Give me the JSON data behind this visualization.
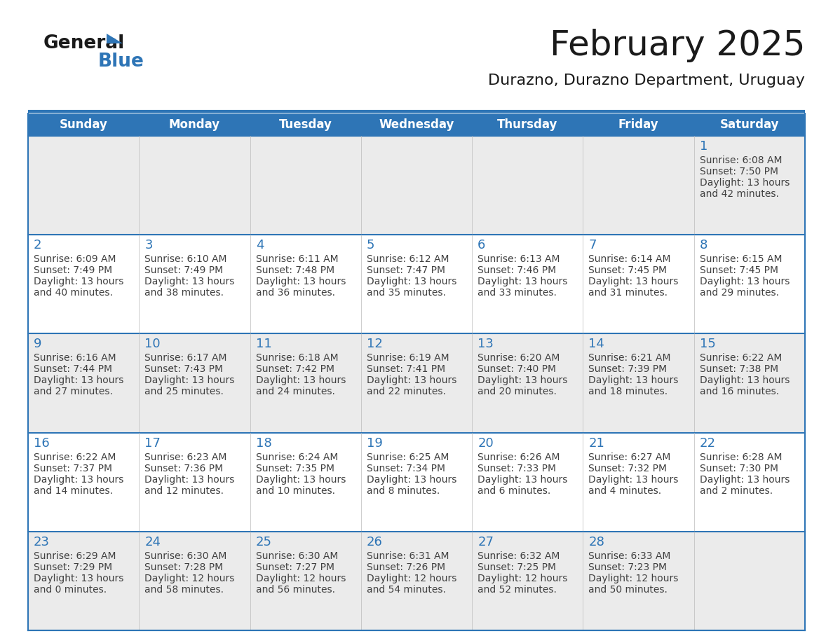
{
  "title": "February 2025",
  "subtitle": "Durazno, Durazno Department, Uruguay",
  "days_of_week": [
    "Sunday",
    "Monday",
    "Tuesday",
    "Wednesday",
    "Thursday",
    "Friday",
    "Saturday"
  ],
  "header_bg": "#2E75B6",
  "header_text": "#FFFFFF",
  "cell_bg_white": "#FFFFFF",
  "cell_bg_gray": "#EBEBEB",
  "border_color": "#2E75B6",
  "text_color": "#404040",
  "day_num_color": "#2E75B6",
  "title_color": "#1a1a1a",
  "logo_general_color": "#1a1a1a",
  "logo_blue_color": "#2E75B6",
  "calendar_data": [
    [
      null,
      null,
      null,
      null,
      null,
      null,
      {
        "day": 1,
        "sunrise": "6:08 AM",
        "sunset": "7:50 PM",
        "daylight_h": "13 hours",
        "daylight_m": "42 minutes"
      }
    ],
    [
      {
        "day": 2,
        "sunrise": "6:09 AM",
        "sunset": "7:49 PM",
        "daylight_h": "13 hours",
        "daylight_m": "40 minutes"
      },
      {
        "day": 3,
        "sunrise": "6:10 AM",
        "sunset": "7:49 PM",
        "daylight_h": "13 hours",
        "daylight_m": "38 minutes"
      },
      {
        "day": 4,
        "sunrise": "6:11 AM",
        "sunset": "7:48 PM",
        "daylight_h": "13 hours",
        "daylight_m": "36 minutes"
      },
      {
        "day": 5,
        "sunrise": "6:12 AM",
        "sunset": "7:47 PM",
        "daylight_h": "13 hours",
        "daylight_m": "35 minutes"
      },
      {
        "day": 6,
        "sunrise": "6:13 AM",
        "sunset": "7:46 PM",
        "daylight_h": "13 hours",
        "daylight_m": "33 minutes"
      },
      {
        "day": 7,
        "sunrise": "6:14 AM",
        "sunset": "7:45 PM",
        "daylight_h": "13 hours",
        "daylight_m": "31 minutes"
      },
      {
        "day": 8,
        "sunrise": "6:15 AM",
        "sunset": "7:45 PM",
        "daylight_h": "13 hours",
        "daylight_m": "29 minutes"
      }
    ],
    [
      {
        "day": 9,
        "sunrise": "6:16 AM",
        "sunset": "7:44 PM",
        "daylight_h": "13 hours",
        "daylight_m": "27 minutes"
      },
      {
        "day": 10,
        "sunrise": "6:17 AM",
        "sunset": "7:43 PM",
        "daylight_h": "13 hours",
        "daylight_m": "25 minutes"
      },
      {
        "day": 11,
        "sunrise": "6:18 AM",
        "sunset": "7:42 PM",
        "daylight_h": "13 hours",
        "daylight_m": "24 minutes"
      },
      {
        "day": 12,
        "sunrise": "6:19 AM",
        "sunset": "7:41 PM",
        "daylight_h": "13 hours",
        "daylight_m": "22 minutes"
      },
      {
        "day": 13,
        "sunrise": "6:20 AM",
        "sunset": "7:40 PM",
        "daylight_h": "13 hours",
        "daylight_m": "20 minutes"
      },
      {
        "day": 14,
        "sunrise": "6:21 AM",
        "sunset": "7:39 PM",
        "daylight_h": "13 hours",
        "daylight_m": "18 minutes"
      },
      {
        "day": 15,
        "sunrise": "6:22 AM",
        "sunset": "7:38 PM",
        "daylight_h": "13 hours",
        "daylight_m": "16 minutes"
      }
    ],
    [
      {
        "day": 16,
        "sunrise": "6:22 AM",
        "sunset": "7:37 PM",
        "daylight_h": "13 hours",
        "daylight_m": "14 minutes"
      },
      {
        "day": 17,
        "sunrise": "6:23 AM",
        "sunset": "7:36 PM",
        "daylight_h": "13 hours",
        "daylight_m": "12 minutes"
      },
      {
        "day": 18,
        "sunrise": "6:24 AM",
        "sunset": "7:35 PM",
        "daylight_h": "13 hours",
        "daylight_m": "10 minutes"
      },
      {
        "day": 19,
        "sunrise": "6:25 AM",
        "sunset": "7:34 PM",
        "daylight_h": "13 hours",
        "daylight_m": "8 minutes"
      },
      {
        "day": 20,
        "sunrise": "6:26 AM",
        "sunset": "7:33 PM",
        "daylight_h": "13 hours",
        "daylight_m": "6 minutes"
      },
      {
        "day": 21,
        "sunrise": "6:27 AM",
        "sunset": "7:32 PM",
        "daylight_h": "13 hours",
        "daylight_m": "4 minutes"
      },
      {
        "day": 22,
        "sunrise": "6:28 AM",
        "sunset": "7:30 PM",
        "daylight_h": "13 hours",
        "daylight_m": "2 minutes"
      }
    ],
    [
      {
        "day": 23,
        "sunrise": "6:29 AM",
        "sunset": "7:29 PM",
        "daylight_h": "13 hours",
        "daylight_m": "0 minutes"
      },
      {
        "day": 24,
        "sunrise": "6:30 AM",
        "sunset": "7:28 PM",
        "daylight_h": "12 hours",
        "daylight_m": "58 minutes"
      },
      {
        "day": 25,
        "sunrise": "6:30 AM",
        "sunset": "7:27 PM",
        "daylight_h": "12 hours",
        "daylight_m": "56 minutes"
      },
      {
        "day": 26,
        "sunrise": "6:31 AM",
        "sunset": "7:26 PM",
        "daylight_h": "12 hours",
        "daylight_m": "54 minutes"
      },
      {
        "day": 27,
        "sunrise": "6:32 AM",
        "sunset": "7:25 PM",
        "daylight_h": "12 hours",
        "daylight_m": "52 minutes"
      },
      {
        "day": 28,
        "sunrise": "6:33 AM",
        "sunset": "7:23 PM",
        "daylight_h": "12 hours",
        "daylight_m": "50 minutes"
      },
      null
    ]
  ]
}
